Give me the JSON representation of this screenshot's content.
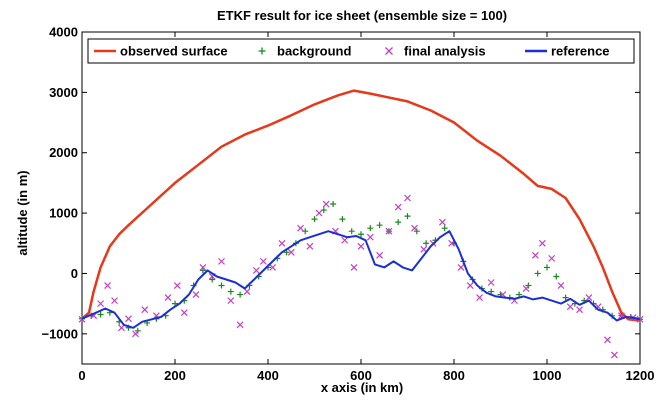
{
  "chart_data": {
    "type": "line",
    "title": "ETKF result for ice sheet (ensemble size = 100)",
    "xlabel": "x axis (in km)",
    "ylabel": "altitude (in m)",
    "xlim": [
      0,
      1200
    ],
    "ylim": [
      -1500,
      4000
    ],
    "xticks": [
      "0",
      "200",
      "400",
      "600",
      "800",
      "1000",
      "1200"
    ],
    "yticks": [
      "−1000",
      "0",
      "1000",
      "2000",
      "3000",
      "4000"
    ],
    "xtick_values": [
      0,
      200,
      400,
      600,
      800,
      1000,
      1200
    ],
    "ytick_values": [
      -1000,
      0,
      1000,
      2000,
      3000,
      4000
    ],
    "legend_position": "top",
    "grid": false,
    "colors": {
      "observed surface": "#e8381a",
      "background": "#1a8a1a",
      "final analysis": "#c43ec4",
      "reference": "#1c2fd6"
    },
    "series": [
      {
        "name": "observed surface",
        "style": "line",
        "points": [
          [
            0,
            -750
          ],
          [
            15,
            -650
          ],
          [
            25,
            -300
          ],
          [
            40,
            100
          ],
          [
            60,
            450
          ],
          [
            80,
            650
          ],
          [
            100,
            800
          ],
          [
            150,
            1150
          ],
          [
            200,
            1500
          ],
          [
            250,
            1800
          ],
          [
            300,
            2100
          ],
          [
            350,
            2300
          ],
          [
            400,
            2450
          ],
          [
            450,
            2620
          ],
          [
            500,
            2800
          ],
          [
            550,
            2950
          ],
          [
            585,
            3030
          ],
          [
            620,
            2980
          ],
          [
            700,
            2850
          ],
          [
            750,
            2700
          ],
          [
            800,
            2500
          ],
          [
            850,
            2200
          ],
          [
            900,
            1950
          ],
          [
            950,
            1650
          ],
          [
            980,
            1450
          ],
          [
            1010,
            1400
          ],
          [
            1040,
            1250
          ],
          [
            1070,
            900
          ],
          [
            1100,
            450
          ],
          [
            1120,
            100
          ],
          [
            1140,
            -300
          ],
          [
            1160,
            -650
          ],
          [
            1175,
            -760
          ],
          [
            1200,
            -780
          ]
        ]
      },
      {
        "name": "background",
        "style": "plus",
        "points": [
          [
            0,
            -750
          ],
          [
            20,
            -700
          ],
          [
            40,
            -680
          ],
          [
            60,
            -650
          ],
          [
            80,
            -800
          ],
          [
            100,
            -900
          ],
          [
            120,
            -950
          ],
          [
            140,
            -820
          ],
          [
            160,
            -750
          ],
          [
            180,
            -700
          ],
          [
            200,
            -500
          ],
          [
            220,
            -450
          ],
          [
            240,
            -200
          ],
          [
            260,
            50
          ],
          [
            280,
            -100
          ],
          [
            300,
            -200
          ],
          [
            320,
            -300
          ],
          [
            340,
            -350
          ],
          [
            360,
            -200
          ],
          [
            380,
            -50
          ],
          [
            400,
            100
          ],
          [
            420,
            250
          ],
          [
            440,
            350
          ],
          [
            460,
            500
          ],
          [
            480,
            700
          ],
          [
            500,
            900
          ],
          [
            520,
            1050
          ],
          [
            540,
            1150
          ],
          [
            560,
            900
          ],
          [
            580,
            700
          ],
          [
            600,
            650
          ],
          [
            620,
            750
          ],
          [
            640,
            800
          ],
          [
            660,
            700
          ],
          [
            680,
            850
          ],
          [
            700,
            950
          ],
          [
            720,
            700
          ],
          [
            740,
            500
          ],
          [
            760,
            550
          ],
          [
            780,
            750
          ],
          [
            800,
            500
          ],
          [
            820,
            200
          ],
          [
            840,
            -100
          ],
          [
            860,
            -250
          ],
          [
            880,
            -300
          ],
          [
            900,
            -350
          ],
          [
            920,
            -400
          ],
          [
            940,
            -350
          ],
          [
            960,
            -200
          ],
          [
            980,
            0
          ],
          [
            1000,
            100
          ],
          [
            1020,
            -50
          ],
          [
            1040,
            -400
          ],
          [
            1060,
            -500
          ],
          [
            1080,
            -450
          ],
          [
            1100,
            -500
          ],
          [
            1120,
            -600
          ],
          [
            1140,
            -700
          ],
          [
            1160,
            -700
          ],
          [
            1180,
            -720
          ],
          [
            1200,
            -760
          ]
        ]
      },
      {
        "name": "final analysis",
        "style": "cross",
        "points": [
          [
            0,
            -760
          ],
          [
            25,
            -700
          ],
          [
            40,
            -500
          ],
          [
            55,
            -200
          ],
          [
            70,
            -450
          ],
          [
            85,
            -900
          ],
          [
            100,
            -750
          ],
          [
            115,
            -1000
          ],
          [
            135,
            -600
          ],
          [
            160,
            -700
          ],
          [
            185,
            -400
          ],
          [
            205,
            -200
          ],
          [
            220,
            -650
          ],
          [
            245,
            -350
          ],
          [
            260,
            100
          ],
          [
            280,
            -50
          ],
          [
            300,
            200
          ],
          [
            320,
            -450
          ],
          [
            340,
            -850
          ],
          [
            355,
            -300
          ],
          [
            375,
            50
          ],
          [
            390,
            200
          ],
          [
            410,
            100
          ],
          [
            430,
            500
          ],
          [
            450,
            350
          ],
          [
            470,
            750
          ],
          [
            490,
            450
          ],
          [
            510,
            1000
          ],
          [
            525,
            1150
          ],
          [
            545,
            700
          ],
          [
            565,
            550
          ],
          [
            585,
            100
          ],
          [
            600,
            450
          ],
          [
            620,
            600
          ],
          [
            640,
            300
          ],
          [
            660,
            700
          ],
          [
            680,
            1100
          ],
          [
            700,
            1250
          ],
          [
            715,
            750
          ],
          [
            735,
            400
          ],
          [
            755,
            500
          ],
          [
            775,
            850
          ],
          [
            795,
            500
          ],
          [
            815,
            100
          ],
          [
            835,
            -200
          ],
          [
            855,
            -400
          ],
          [
            880,
            -150
          ],
          [
            905,
            -350
          ],
          [
            930,
            -450
          ],
          [
            955,
            -250
          ],
          [
            975,
            300
          ],
          [
            990,
            500
          ],
          [
            1010,
            250
          ],
          [
            1030,
            -200
          ],
          [
            1050,
            -550
          ],
          [
            1070,
            -600
          ],
          [
            1090,
            -400
          ],
          [
            1110,
            -550
          ],
          [
            1130,
            -1100
          ],
          [
            1145,
            -1350
          ],
          [
            1160,
            -700
          ],
          [
            1185,
            -730
          ],
          [
            1200,
            -760
          ]
        ]
      },
      {
        "name": "reference",
        "style": "line",
        "points": [
          [
            0,
            -750
          ],
          [
            30,
            -650
          ],
          [
            50,
            -580
          ],
          [
            70,
            -650
          ],
          [
            90,
            -850
          ],
          [
            110,
            -900
          ],
          [
            130,
            -800
          ],
          [
            150,
            -760
          ],
          [
            170,
            -720
          ],
          [
            190,
            -600
          ],
          [
            210,
            -500
          ],
          [
            230,
            -350
          ],
          [
            250,
            -100
          ],
          [
            270,
            50
          ],
          [
            290,
            -50
          ],
          [
            310,
            -100
          ],
          [
            330,
            -150
          ],
          [
            350,
            -250
          ],
          [
            370,
            -100
          ],
          [
            390,
            50
          ],
          [
            410,
            200
          ],
          [
            430,
            350
          ],
          [
            450,
            450
          ],
          [
            470,
            550
          ],
          [
            490,
            600
          ],
          [
            510,
            650
          ],
          [
            530,
            700
          ],
          [
            550,
            650
          ],
          [
            570,
            600
          ],
          [
            590,
            620
          ],
          [
            610,
            550
          ],
          [
            630,
            150
          ],
          [
            650,
            100
          ],
          [
            670,
            200
          ],
          [
            690,
            100
          ],
          [
            710,
            50
          ],
          [
            730,
            250
          ],
          [
            750,
            450
          ],
          [
            770,
            600
          ],
          [
            790,
            700
          ],
          [
            810,
            400
          ],
          [
            830,
            0
          ],
          [
            850,
            -200
          ],
          [
            870,
            -320
          ],
          [
            890,
            -380
          ],
          [
            910,
            -400
          ],
          [
            930,
            -420
          ],
          [
            950,
            -380
          ],
          [
            970,
            -430
          ],
          [
            990,
            -400
          ],
          [
            1010,
            -450
          ],
          [
            1030,
            -500
          ],
          [
            1050,
            -420
          ],
          [
            1070,
            -520
          ],
          [
            1090,
            -450
          ],
          [
            1110,
            -600
          ],
          [
            1130,
            -650
          ],
          [
            1150,
            -780
          ],
          [
            1170,
            -720
          ],
          [
            1190,
            -740
          ],
          [
            1200,
            -760
          ]
        ]
      }
    ]
  }
}
